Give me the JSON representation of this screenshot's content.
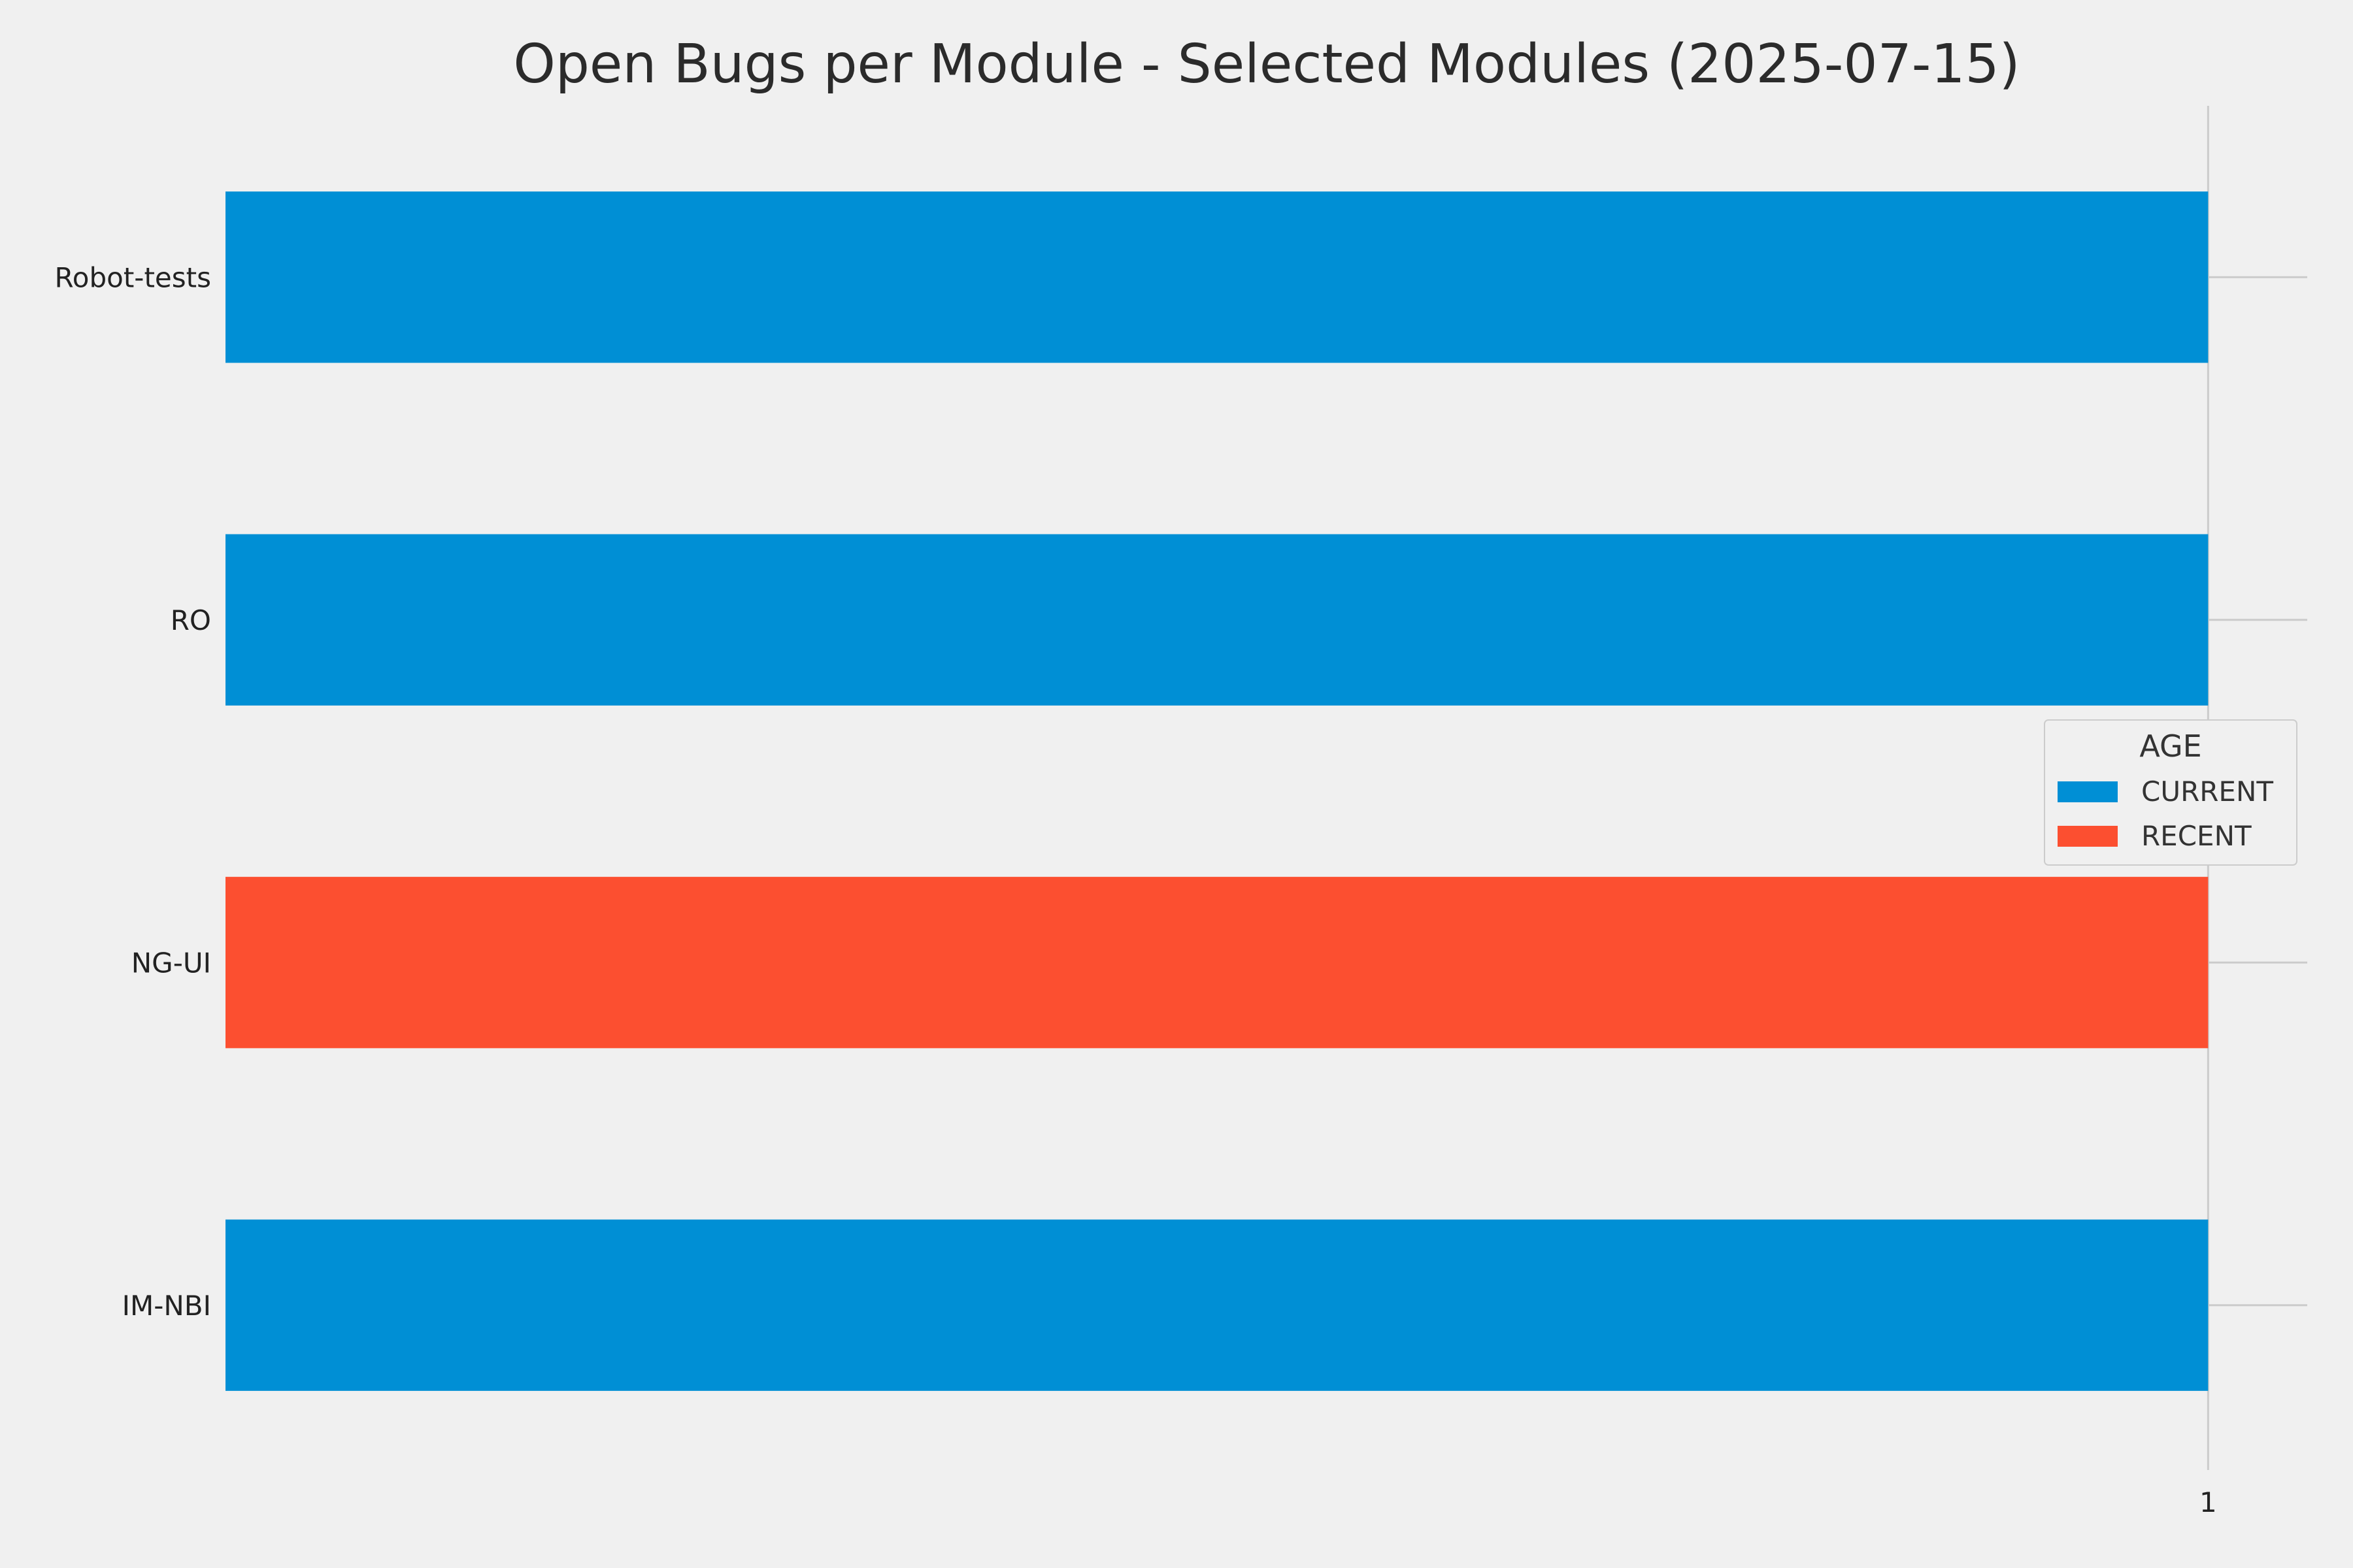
{
  "chart_data": {
    "type": "bar",
    "orientation": "horizontal",
    "title": "Open Bugs per Module - Selected Modules (2025-07-15)",
    "xlabel": "",
    "ylabel": "",
    "categories": [
      "Robot-tests",
      "RO",
      "NG-UI",
      "IM-NBI"
    ],
    "values": [
      1,
      1,
      1,
      1
    ],
    "bar_age": [
      "CURRENT",
      "CURRENT",
      "RECENT",
      "CURRENT"
    ],
    "xlim": [
      0,
      1.05
    ],
    "x_ticks": [
      1
    ],
    "x_tick_labels": [
      "1"
    ],
    "grid": true,
    "legend": {
      "title": "AGE",
      "placement": "center-right",
      "entries": [
        {
          "name": "CURRENT",
          "color": "#008fd5"
        },
        {
          "name": "RECENT",
          "color": "#fc4f30"
        }
      ]
    }
  },
  "colors": {
    "background": "#f0f0f0",
    "grid": "#cbcbcb",
    "current": "#008fd5",
    "recent": "#fc4f30"
  }
}
